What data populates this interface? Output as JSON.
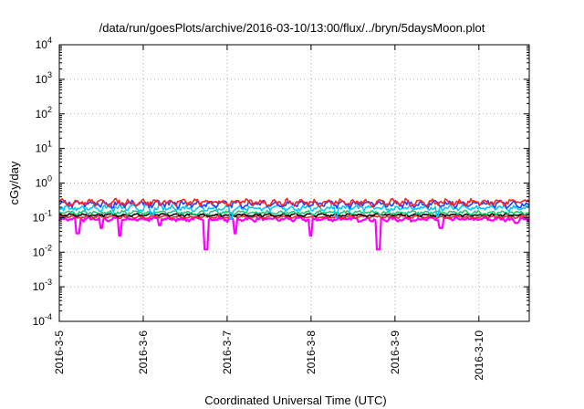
{
  "chart_data": {
    "type": "line",
    "title": "/data/run/goesPlots/archive/2016-03-10/13:00/flux/../bryn/5daysMoon.plot",
    "xlabel": "Coordinated Universal Time (UTC)",
    "ylabel": "cGy/day",
    "yscale": "log",
    "ylim": [
      0.0001,
      10000
    ],
    "xlim": [
      0,
      5.6
    ],
    "grid": true,
    "legend": "none",
    "x_ticks": [
      {
        "value": 0,
        "label": "2016-3-5"
      },
      {
        "value": 1,
        "label": "2016-3-6"
      },
      {
        "value": 2,
        "label": "2016-3-7"
      },
      {
        "value": 3,
        "label": "2016-3-8"
      },
      {
        "value": 4,
        "label": "2016-3-9"
      },
      {
        "value": 5,
        "label": "2016-3-10"
      }
    ],
    "y_ticks": [
      {
        "value": 0.0001,
        "base": "10",
        "exp": "-4"
      },
      {
        "value": 0.001,
        "base": "10",
        "exp": "-3"
      },
      {
        "value": 0.01,
        "base": "10",
        "exp": "-2"
      },
      {
        "value": 0.1,
        "base": "10",
        "exp": "-1"
      },
      {
        "value": 1,
        "base": "10",
        "exp": "0"
      },
      {
        "value": 10,
        "base": "10",
        "exp": "1"
      },
      {
        "value": 100,
        "base": "10",
        "exp": "2"
      },
      {
        "value": 1000,
        "base": "10",
        "exp": "3"
      },
      {
        "value": 10000,
        "base": "10",
        "exp": "4"
      }
    ],
    "series": [
      {
        "color": "#ff00ff",
        "base": 0.09,
        "amplitude": 0.12,
        "dips": [
          [
            0.22,
            0.035
          ],
          [
            0.5,
            0.05
          ],
          [
            0.72,
            0.03
          ],
          [
            1.2,
            0.06
          ],
          [
            1.75,
            0.012
          ],
          [
            2.1,
            0.035
          ],
          [
            3.0,
            0.03
          ],
          [
            3.8,
            0.012
          ],
          [
            4.55,
            0.05
          ],
          [
            5.45,
            0.07
          ]
        ]
      },
      {
        "color": "#e6261f",
        "base": 0.105,
        "amplitude": 0.08,
        "dips": []
      },
      {
        "color": "#000000",
        "base": 0.12,
        "amplitude": 0.08,
        "dips": []
      },
      {
        "color": "#1ec878",
        "base": 0.14,
        "amplitude": 0.12,
        "dips": []
      },
      {
        "color": "#00c8ff",
        "base": 0.19,
        "amplitude": 0.18,
        "dips": [
          [
            1.1,
            0.12
          ],
          [
            2.05,
            0.09
          ],
          [
            3.3,
            0.1
          ],
          [
            4.5,
            0.11
          ]
        ]
      },
      {
        "color": "#1f3fff",
        "base": 0.25,
        "amplitude": 0.2,
        "dips": []
      },
      {
        "color": "#ff2020",
        "base": 0.28,
        "amplitude": 0.2,
        "dips": []
      }
    ]
  }
}
